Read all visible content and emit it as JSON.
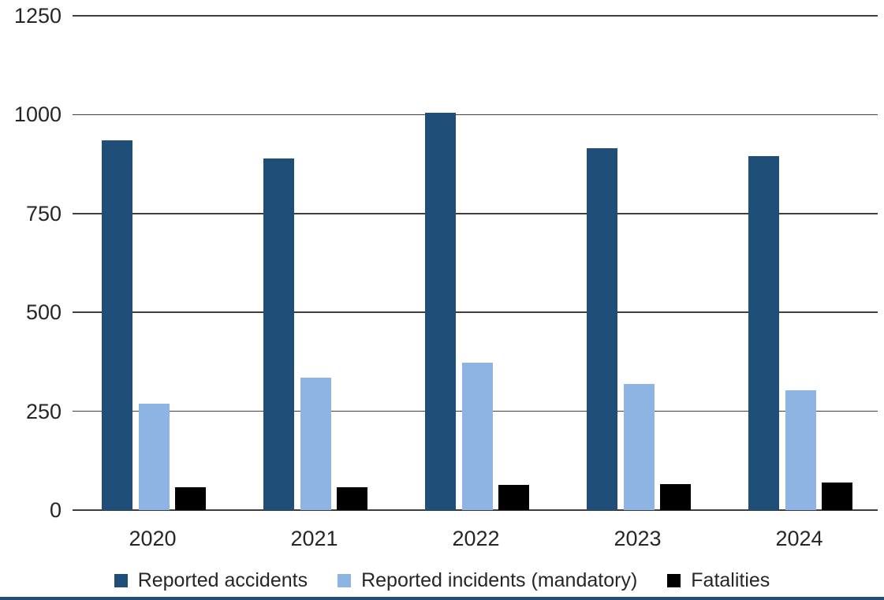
{
  "chart_data": {
    "type": "bar",
    "title": "",
    "xlabel": "",
    "ylabel": "",
    "categories": [
      "2020",
      "2021",
      "2022",
      "2023",
      "2024"
    ],
    "series": [
      {
        "name": "Reported accidents",
        "color": "#1F4E79",
        "values": [
          935,
          890,
          1005,
          915,
          895
        ]
      },
      {
        "name": "Reported incidents (mandatory)",
        "color": "#8EB4E3",
        "values": [
          270,
          335,
          372,
          318,
          303
        ]
      },
      {
        "name": "Fatalities",
        "color": "#000000",
        "values": [
          58,
          58,
          63,
          66,
          70
        ]
      }
    ],
    "ylim": [
      0,
      1250
    ],
    "yticks": [
      0,
      250,
      500,
      750,
      1000,
      1250
    ],
    "grid": true,
    "legend_position": "bottom"
  },
  "colors": {
    "background": "#FFFFFF",
    "text": "#262626",
    "gridline": "#404040",
    "axis_line": "#3D3D3D",
    "bottom_rule": "#1F4E79"
  }
}
